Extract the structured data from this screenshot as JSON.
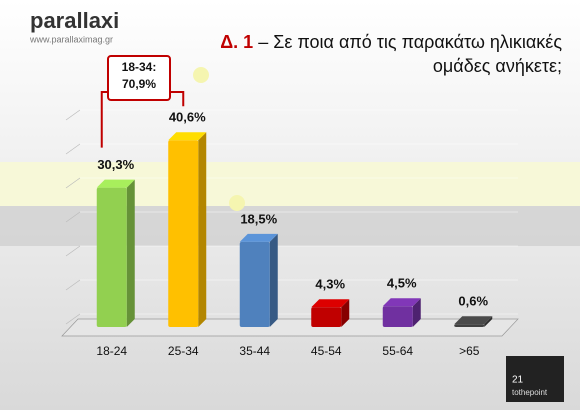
{
  "branding": {
    "logo": "parallaxi",
    "url": "www.parallaximag.gr",
    "page_number": "21",
    "footer_logo": "tothepoint"
  },
  "chart_data": {
    "type": "bar3d",
    "title_prefix": "Δ. 1",
    "title": "– Σε ποια από τις παρακάτω ηλικιακές ομάδες ανήκετε;",
    "categories": [
      "18-24",
      "25-34",
      "35-44",
      "45-54",
      "55-64",
      ">65"
    ],
    "values": [
      30.3,
      40.6,
      18.5,
      4.3,
      4.5,
      0.6
    ],
    "value_labels": [
      "30,3%",
      "40,6%",
      "18,5%",
      "4,3%",
      "4,5%",
      "0,6%"
    ],
    "colors": [
      "#92d050",
      "#ffc000",
      "#4f81bd",
      "#c00000",
      "#7030a0",
      "#404040"
    ],
    "ylim": [
      0,
      45
    ],
    "annotation": {
      "lines": [
        "18-34:",
        "70,9%"
      ],
      "color": "#c00000"
    }
  }
}
